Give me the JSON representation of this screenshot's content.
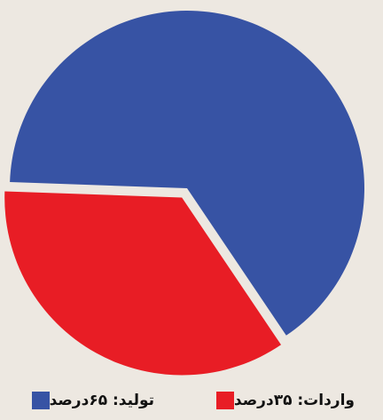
{
  "chart_data": {
    "type": "pie",
    "slices": [
      {
        "label": "واردات: ۳۵درصد",
        "value": 35,
        "color": "#e81d25"
      },
      {
        "label": "تولید: ۶۵درصد",
        "value": 65,
        "color": "#3753a4"
      }
    ]
  }
}
